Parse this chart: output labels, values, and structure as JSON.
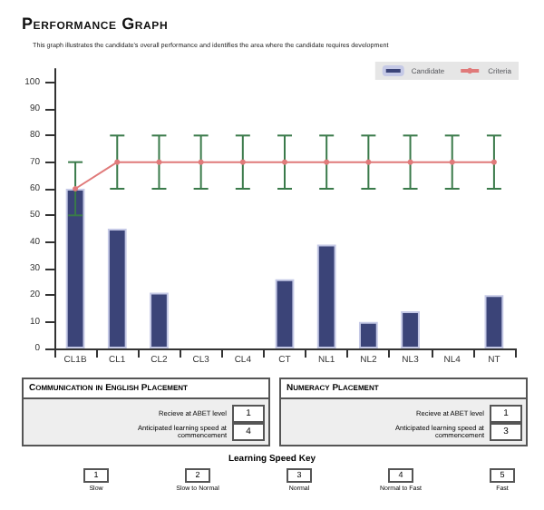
{
  "chart_data": {
    "type": "bar",
    "title": "Performance Graph",
    "subtitle": "This graph illustrates the candidate's overall performance and identifies the area where the candidate requires development",
    "categories": [
      "CL1B",
      "CL1",
      "CL2",
      "CL3",
      "CL4",
      "CT",
      "NL1",
      "NL2",
      "NL3",
      "NL4",
      "NT"
    ],
    "series": [
      {
        "name": "Candidate",
        "color": "#3b4478",
        "values": [
          60,
          45,
          21,
          null,
          null,
          26,
          39,
          10,
          14,
          null,
          20
        ]
      },
      {
        "name": "Criteria",
        "type": "line",
        "color": "#e07a7a",
        "marker": "circle",
        "values": [
          60,
          70,
          70,
          70,
          70,
          70,
          70,
          70,
          70,
          70,
          70
        ],
        "errors": [
          [
            50,
            70
          ],
          [
            60,
            80
          ],
          [
            60,
            80
          ],
          [
            60,
            80
          ],
          [
            60,
            80
          ],
          [
            60,
            80
          ],
          [
            60,
            80
          ],
          [
            60,
            80
          ],
          [
            60,
            80
          ],
          [
            60,
            80
          ],
          [
            60,
            80
          ]
        ]
      }
    ],
    "ylim": [
      0,
      105
    ],
    "yticks": [
      0,
      10,
      20,
      30,
      40,
      50,
      60,
      70,
      80,
      90,
      100
    ],
    "grid": false,
    "legend": "top right",
    "annotations": [
      "Communication in English Placement",
      "Recieve at ABET level",
      "1",
      "Anticipated learning speed at commencement",
      "4",
      "Numeracy Placement",
      "Recieve at ABET level",
      "1",
      "Anticipated learning speed at commencement",
      "3",
      "Learning Speed Key",
      "1",
      "Slow",
      "2",
      "Slow to Normal",
      "3",
      "Normal",
      "4",
      "Normal to Fast",
      "5",
      "Fast"
    ]
  }
}
